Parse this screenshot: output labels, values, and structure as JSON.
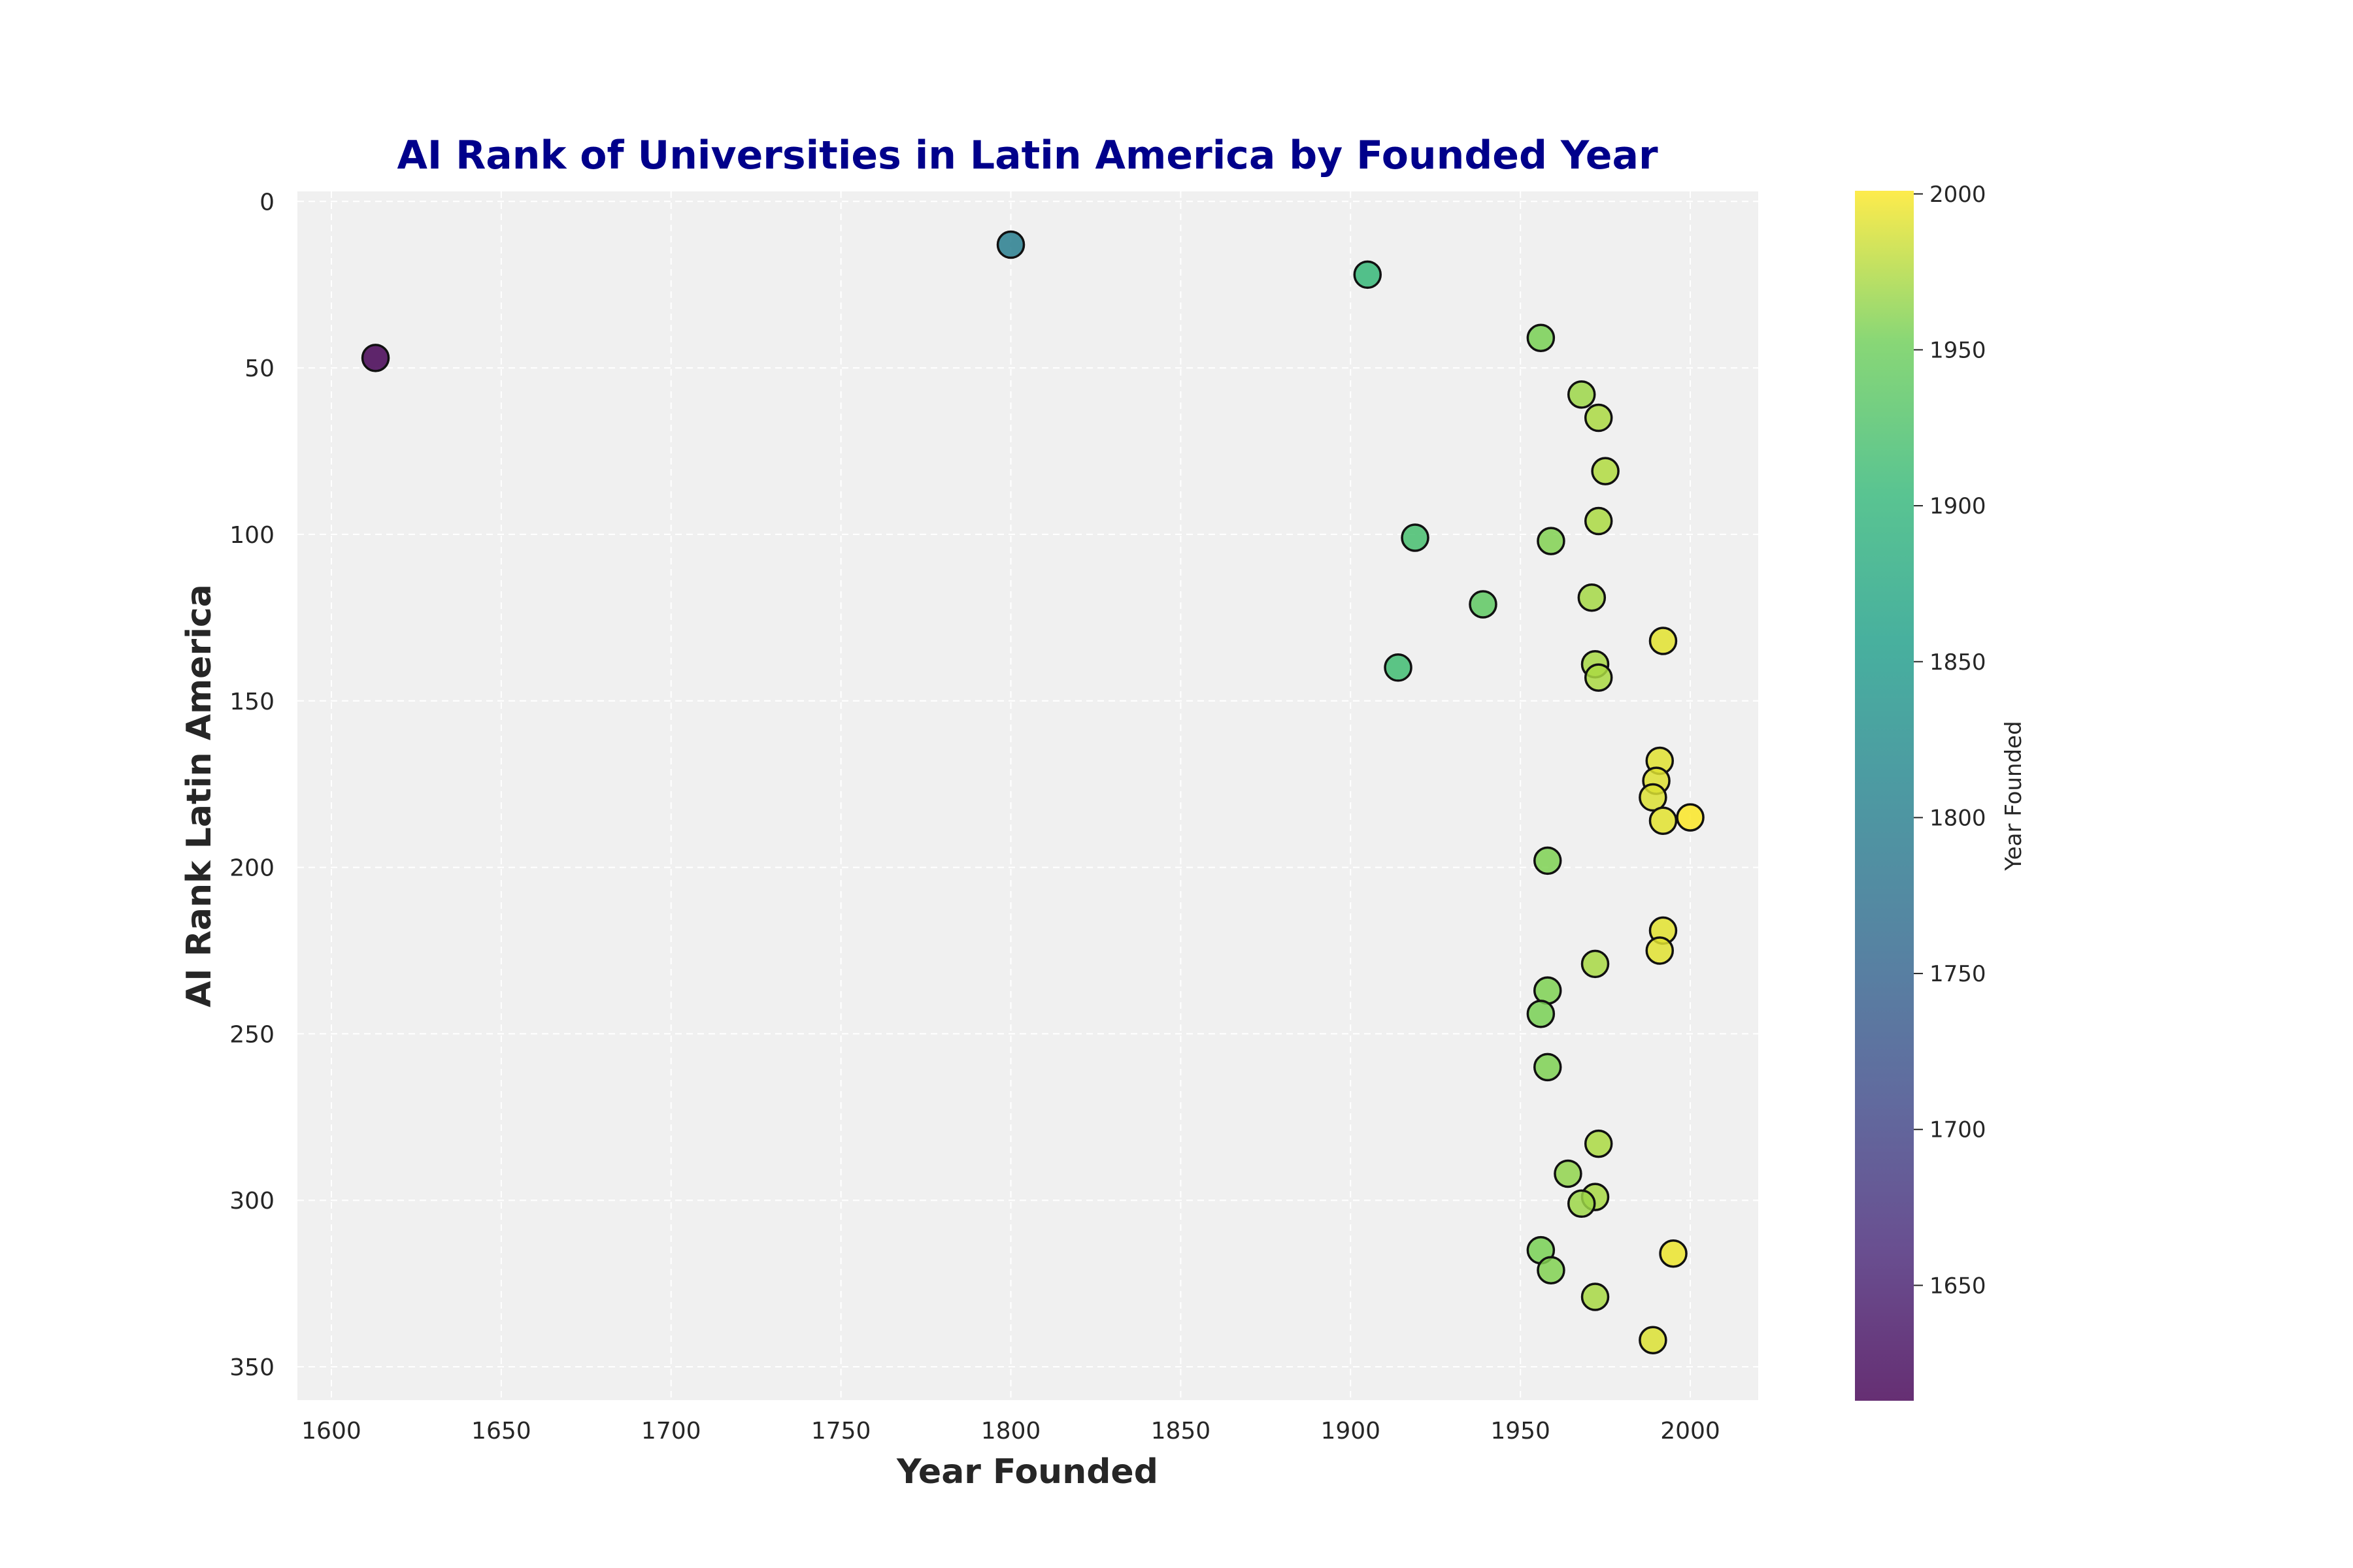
{
  "chart_data": {
    "type": "scatter",
    "title": "AI Rank of Universities in Latin America by Founded Year",
    "xlabel": "Year Founded",
    "ylabel": "AI Rank Latin America",
    "xlim": [
      1590,
      2020
    ],
    "ylim": [
      360,
      -3
    ],
    "y_inverted": true,
    "xticks": [
      1600,
      1650,
      1700,
      1750,
      1800,
      1850,
      1900,
      1950,
      2000
    ],
    "yticks": [
      0,
      50,
      100,
      150,
      200,
      250,
      300,
      350
    ],
    "grid": true,
    "colorbar": {
      "label": "Year Founded",
      "colormap": "viridis",
      "range": [
        1613,
        2001
      ],
      "ticks": [
        1650,
        1700,
        1750,
        1800,
        1850,
        1900,
        1950,
        2000
      ]
    },
    "points": [
      {
        "x": 1613,
        "y": 47
      },
      {
        "x": 1800,
        "y": 13
      },
      {
        "x": 1905,
        "y": 22
      },
      {
        "x": 1956,
        "y": 41
      },
      {
        "x": 1968,
        "y": 58
      },
      {
        "x": 1973,
        "y": 65
      },
      {
        "x": 1975,
        "y": 81
      },
      {
        "x": 1973,
        "y": 96
      },
      {
        "x": 1919,
        "y": 101
      },
      {
        "x": 1959,
        "y": 102
      },
      {
        "x": 1971,
        "y": 119
      },
      {
        "x": 1939,
        "y": 121
      },
      {
        "x": 1992,
        "y": 132
      },
      {
        "x": 1972,
        "y": 139
      },
      {
        "x": 1914,
        "y": 140
      },
      {
        "x": 1973,
        "y": 143
      },
      {
        "x": 1991,
        "y": 168
      },
      {
        "x": 1990,
        "y": 174
      },
      {
        "x": 1989,
        "y": 179
      },
      {
        "x": 1992,
        "y": 186
      },
      {
        "x": 2000,
        "y": 185
      },
      {
        "x": 1958,
        "y": 198
      },
      {
        "x": 1992,
        "y": 219
      },
      {
        "x": 1991,
        "y": 225
      },
      {
        "x": 1972,
        "y": 229
      },
      {
        "x": 1958,
        "y": 237
      },
      {
        "x": 1956,
        "y": 244
      },
      {
        "x": 1958,
        "y": 260
      },
      {
        "x": 1973,
        "y": 283
      },
      {
        "x": 1964,
        "y": 292
      },
      {
        "x": 1972,
        "y": 299
      },
      {
        "x": 1968,
        "y": 301
      },
      {
        "x": 1956,
        "y": 315
      },
      {
        "x": 1995,
        "y": 316
      },
      {
        "x": 1959,
        "y": 321
      },
      {
        "x": 1972,
        "y": 329
      },
      {
        "x": 1989,
        "y": 342
      }
    ]
  },
  "colors": {
    "title": "#00008b",
    "plot_bg": "#f0f0f0",
    "grid": "#ffffff",
    "text": "#262626"
  }
}
